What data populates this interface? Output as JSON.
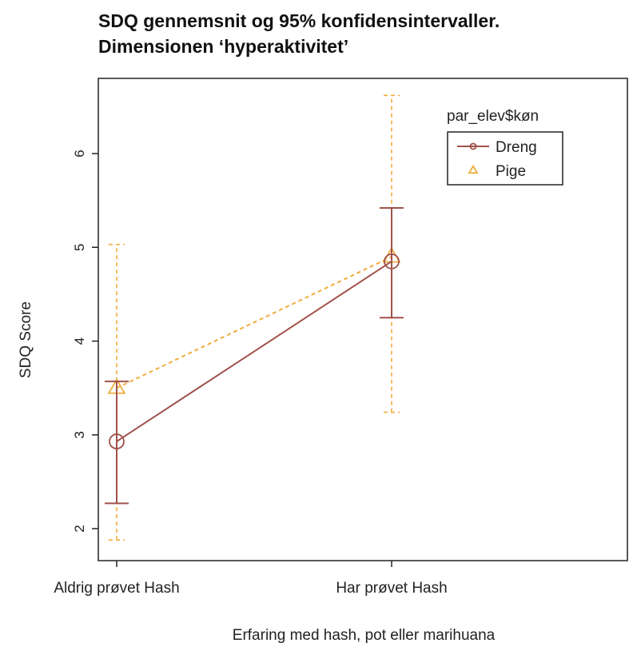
{
  "chart_data": {
    "type": "line",
    "title_lines": [
      "SDQ gennemsnit og 95% konfidensintervaller.",
      "Dimensionen ‘hyperaktivitet’"
    ],
    "xlabel": "Erfaring med hash, pot eller marihuana",
    "ylabel": "SDQ Score",
    "categories": [
      "Aldrig prøvet Hash",
      "Har prøvet Hash"
    ],
    "yticks": [
      2,
      3,
      4,
      5,
      6
    ],
    "ylim": [
      1.7,
      6.8
    ],
    "legend": {
      "title": "par_elev$køn",
      "position": "top-right"
    },
    "series": [
      {
        "name": "Dreng",
        "marker": "circle",
        "line_style": "solid",
        "color": "#a0524a",
        "values": [
          2.93,
          4.85
        ],
        "ci_low": [
          2.27,
          4.25
        ],
        "ci_high": [
          3.57,
          5.42
        ]
      },
      {
        "name": "Pige",
        "marker": "triangle",
        "line_style": "dashed",
        "color": "#f0ad3c",
        "values": [
          3.5,
          4.9
        ],
        "ci_low": [
          1.88,
          3.24
        ],
        "ci_high": [
          5.03,
          6.62
        ]
      }
    ]
  }
}
